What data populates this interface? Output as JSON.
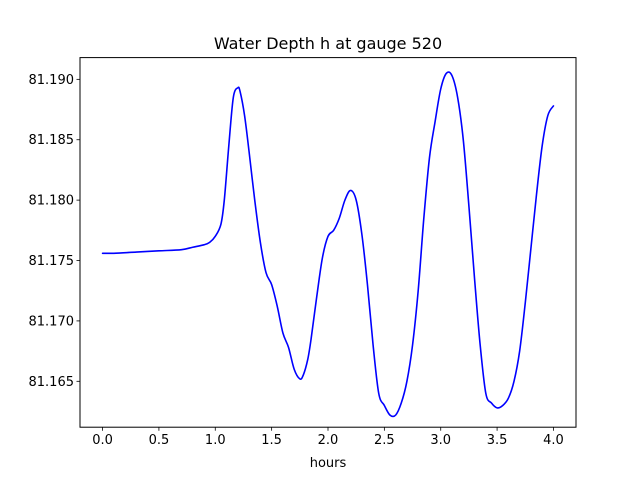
{
  "chart_data": {
    "type": "line",
    "title": "Water Depth h at gauge 520",
    "xlabel": "hours",
    "ylabel": "",
    "xlim": [
      -0.2,
      4.2
    ],
    "ylim": [
      81.1612,
      81.1918
    ],
    "xticks": [
      0.0,
      0.5,
      1.0,
      1.5,
      2.0,
      2.5,
      3.0,
      3.5,
      4.0
    ],
    "xtick_labels": [
      "0.0",
      "0.5",
      "1.0",
      "1.5",
      "2.0",
      "2.5",
      "3.0",
      "3.5",
      "4.0"
    ],
    "yticks": [
      81.165,
      81.17,
      81.175,
      81.18,
      81.185,
      81.19
    ],
    "ytick_labels": [
      "81.165",
      "81.170",
      "81.175",
      "81.180",
      "81.185",
      "81.190"
    ],
    "grid": false,
    "series": [
      {
        "color": "#0000ff",
        "x": [
          0.0,
          0.1,
          0.3,
          0.5,
          0.7,
          0.8,
          0.9,
          0.95,
          1.0,
          1.05,
          1.08,
          1.12,
          1.16,
          1.2,
          1.22,
          1.26,
          1.3,
          1.35,
          1.4,
          1.45,
          1.5,
          1.55,
          1.6,
          1.65,
          1.7,
          1.75,
          1.78,
          1.82,
          1.85,
          1.9,
          1.95,
          2.0,
          2.05,
          2.1,
          2.15,
          2.2,
          2.25,
          2.3,
          2.35,
          2.4,
          2.45,
          2.5,
          2.55,
          2.6,
          2.65,
          2.7,
          2.75,
          2.8,
          2.85,
          2.9,
          2.95,
          3.0,
          3.05,
          3.1,
          3.15,
          3.2,
          3.25,
          3.3,
          3.35,
          3.4,
          3.45,
          3.5,
          3.55,
          3.6,
          3.65,
          3.7,
          3.75,
          3.8,
          3.85,
          3.9,
          3.95,
          4.0
        ],
        "y": [
          81.1756,
          81.1756,
          81.1757,
          81.1758,
          81.1759,
          81.1761,
          81.1763,
          81.1765,
          81.177,
          81.178,
          81.18,
          81.1845,
          81.1885,
          81.1893,
          81.189,
          81.187,
          81.184,
          81.18,
          81.1765,
          81.174,
          81.173,
          81.1712,
          81.169,
          81.1678,
          81.166,
          81.1652,
          81.1655,
          81.1668,
          81.1685,
          81.172,
          81.1752,
          81.177,
          81.1775,
          81.1785,
          81.18,
          81.1808,
          81.18,
          81.1772,
          81.173,
          81.168,
          81.164,
          81.163,
          81.1622,
          81.1622,
          81.1632,
          81.165,
          81.168,
          81.1725,
          81.1785,
          81.1835,
          81.1865,
          81.1892,
          81.1905,
          81.1903,
          81.1885,
          81.185,
          81.1795,
          81.1735,
          81.168,
          81.164,
          81.1632,
          81.1628,
          81.163,
          81.1636,
          81.165,
          81.1675,
          81.1715,
          81.176,
          81.1805,
          81.1845,
          81.187,
          81.1878
        ]
      }
    ]
  }
}
